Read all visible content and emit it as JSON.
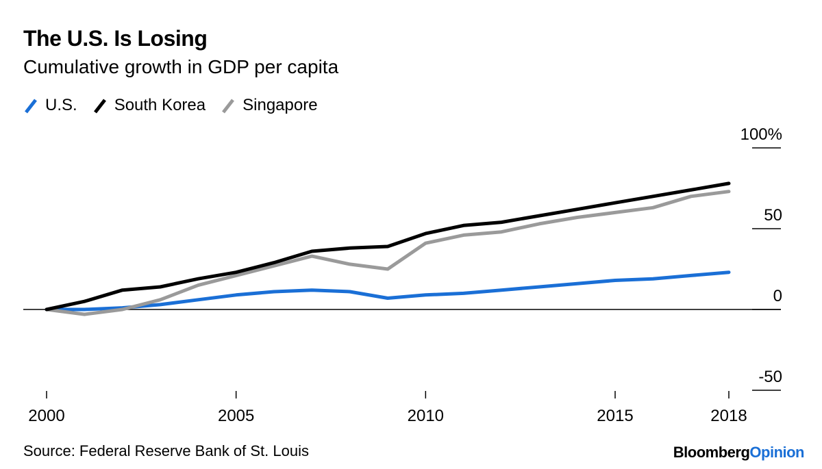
{
  "title": "The U.S. Is Losing",
  "subtitle": "Cumulative growth in GDP per capita",
  "source": "Source: Federal Reserve Bank of St. Louis",
  "brand": {
    "part1": "Bloomberg",
    "part2": "Opinion",
    "color1": "#000000",
    "color2": "#1a6fd6"
  },
  "chart_data": {
    "type": "line",
    "title": "The U.S. Is Losing",
    "subtitle": "Cumulative growth in GDP per capita",
    "xlabel": "",
    "ylabel": "",
    "x": [
      2000,
      2001,
      2002,
      2003,
      2004,
      2005,
      2006,
      2007,
      2008,
      2009,
      2010,
      2011,
      2012,
      2013,
      2014,
      2015,
      2016,
      2017,
      2018
    ],
    "xlim": [
      2000,
      2018
    ],
    "ylim": [
      -50,
      100
    ],
    "x_ticks": [
      2000,
      2005,
      2010,
      2015,
      2018
    ],
    "x_tick_labels": [
      "2000",
      "2005",
      "2010",
      "2015",
      "2018"
    ],
    "y_ticks": [
      100,
      50,
      0,
      -50
    ],
    "y_tick_labels": [
      "100%",
      "50",
      "0",
      "-50"
    ],
    "zero_line": true,
    "grid": false,
    "legend_position": "top-left",
    "series": [
      {
        "name": "U.S.",
        "color": "#1a6fd6",
        "values": [
          0,
          0,
          1,
          3,
          6,
          9,
          11,
          12,
          11,
          7,
          9,
          10,
          12,
          14,
          16,
          18,
          19,
          21,
          23
        ]
      },
      {
        "name": "South Korea",
        "color": "#000000",
        "values": [
          0,
          5,
          12,
          14,
          19,
          23,
          29,
          36,
          38,
          39,
          47,
          52,
          54,
          58,
          62,
          66,
          70,
          74,
          78
        ]
      },
      {
        "name": "Singapore",
        "color": "#9a9a9a",
        "values": [
          0,
          -3,
          0,
          6,
          15,
          21,
          27,
          33,
          28,
          25,
          41,
          46,
          48,
          53,
          57,
          60,
          63,
          70,
          73
        ]
      }
    ]
  }
}
